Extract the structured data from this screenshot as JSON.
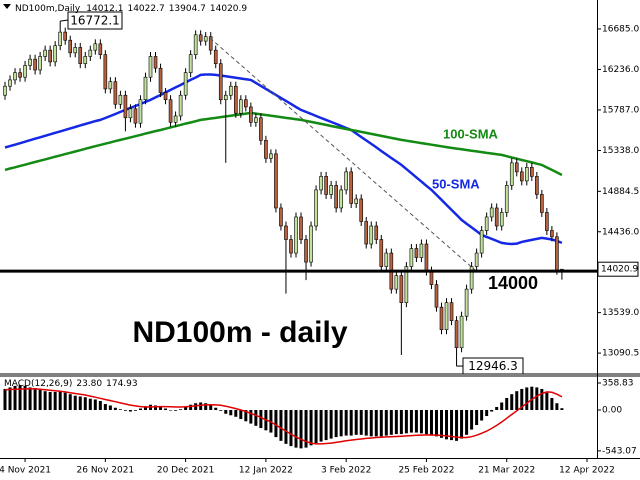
{
  "chart_data": [
    {
      "type": "candlestick",
      "title": "ND100m - daily",
      "symbol": "ND100m,Daily",
      "ylim": [
        12881,
        17006
      ],
      "yticks": [
        {
          "value": 16685,
          "label": "16685.0"
        },
        {
          "value": 16236,
          "label": "16236.0"
        },
        {
          "value": 15787,
          "label": "15787.0"
        },
        {
          "value": 15338,
          "label": "15338.0"
        },
        14884.5,
        {
          "value": 14436,
          "label": "14436.0"
        },
        {
          "value": 13539,
          "label": "13539.0"
        },
        13090.5
      ],
      "open": [
        15950,
        16050,
        16120,
        16200,
        16150,
        16280,
        16350,
        16230,
        16380,
        16450,
        16320,
        16500,
        16650,
        16560,
        16420,
        16480,
        16300,
        16380,
        16450,
        16520,
        16400,
        16020,
        16100,
        15850,
        15950,
        15700,
        15800,
        15640,
        15900,
        16150,
        16380,
        16250,
        15980,
        15900,
        15650,
        15720,
        15950,
        16200,
        16400,
        16620,
        16550,
        16600,
        16450,
        16300,
        15900,
        15950,
        16050,
        15750,
        15900,
        15820,
        15650,
        15700,
        15450,
        15250,
        15300,
        14700,
        14500,
        14350,
        14200,
        14600,
        14350,
        14100,
        14500,
        14900,
        15050,
        14850,
        14950,
        14700,
        14900,
        15100,
        14750,
        14800,
        14550,
        14300,
        14500,
        14350,
        14050,
        14200,
        13800,
        13950,
        13650,
        14050,
        14250,
        14150,
        14300,
        14000,
        13850,
        13600,
        13350,
        13650,
        13450,
        13150,
        13500,
        13800,
        14050,
        14200,
        14450,
        14600,
        14700,
        14500,
        14650,
        14950,
        15200,
        15100,
        15000,
        15150,
        15050,
        14850,
        14650,
        14450,
        14380,
        14012.1
      ],
      "high": [
        16100,
        16170,
        16250,
        16250,
        16330,
        16400,
        16400,
        16430,
        16500,
        16500,
        16550,
        16772.1,
        16700,
        16610,
        16530,
        16530,
        16430,
        16500,
        16570,
        16570,
        16450,
        16150,
        16150,
        16000,
        16000,
        15850,
        15850,
        15950,
        16200,
        16430,
        16430,
        16300,
        16030,
        15950,
        15770,
        16000,
        16250,
        16450,
        16670,
        16670,
        16650,
        16650,
        16500,
        16350,
        16000,
        16100,
        16100,
        15950,
        15950,
        15870,
        15750,
        15750,
        15500,
        15350,
        15350,
        14750,
        14550,
        14400,
        14650,
        14650,
        14400,
        14550,
        14950,
        15100,
        15100,
        15000,
        15000,
        14950,
        15150,
        15150,
        14850,
        14850,
        14600,
        14550,
        14550,
        14400,
        14250,
        14250,
        14000,
        14000,
        14100,
        14300,
        14300,
        14350,
        14350,
        14050,
        13900,
        13650,
        13700,
        13700,
        13500,
        13550,
        13850,
        14100,
        14250,
        14500,
        14650,
        14750,
        14750,
        14700,
        15000,
        15250,
        15250,
        15150,
        15200,
        15200,
        15100,
        14900,
        14700,
        14500,
        14430,
        14022.7
      ],
      "low": [
        15900,
        16000,
        16070,
        16100,
        16100,
        16230,
        16180,
        16180,
        16330,
        16270,
        16270,
        16450,
        16510,
        16370,
        16370,
        16250,
        16250,
        16330,
        16400,
        16350,
        15970,
        15970,
        15800,
        15800,
        15550,
        15650,
        15590,
        15590,
        15850,
        16100,
        16200,
        15930,
        15850,
        15600,
        15600,
        15670,
        15900,
        16150,
        16350,
        16500,
        16500,
        16400,
        16250,
        15850,
        15200,
        15900,
        15700,
        15700,
        15770,
        15600,
        15600,
        15400,
        15200,
        15200,
        14650,
        14450,
        13750,
        14150,
        14150,
        14300,
        13900,
        14050,
        14450,
        14850,
        14800,
        14800,
        14650,
        14650,
        14850,
        14700,
        14700,
        14500,
        14250,
        14250,
        14300,
        14000,
        14000,
        13750,
        13750,
        13070,
        13600,
        14000,
        14100,
        14100,
        13950,
        13800,
        13550,
        13300,
        13300,
        13400,
        12946.3,
        13100,
        13450,
        13750,
        14000,
        14150,
        14400,
        14550,
        14450,
        14450,
        14600,
        14900,
        15050,
        14950,
        14950,
        15000,
        14800,
        14600,
        14400,
        14330,
        13960,
        13904.7
      ],
      "close": [
        16050,
        16120,
        16200,
        16150,
        16280,
        16350,
        16230,
        16380,
        16450,
        16320,
        16500,
        16650,
        16560,
        16420,
        16480,
        16300,
        16380,
        16450,
        16520,
        16400,
        16020,
        16100,
        15850,
        15950,
        15700,
        15800,
        15640,
        15900,
        16150,
        16380,
        16250,
        15980,
        15900,
        15650,
        15720,
        15950,
        16200,
        16400,
        16620,
        16550,
        16600,
        16450,
        16300,
        15900,
        15950,
        16050,
        15750,
        15900,
        15820,
        15650,
        15700,
        15450,
        15250,
        15300,
        14700,
        14500,
        14350,
        14200,
        14600,
        14350,
        14100,
        14500,
        14900,
        15050,
        14850,
        14950,
        14700,
        14900,
        15100,
        14750,
        14800,
        14550,
        14300,
        14500,
        14350,
        14050,
        14200,
        13800,
        13950,
        13650,
        14050,
        14250,
        14150,
        14300,
        14000,
        13850,
        13600,
        13350,
        13650,
        13450,
        13150,
        13500,
        13800,
        14050,
        14200,
        14450,
        14600,
        14700,
        14500,
        14650,
        14950,
        15200,
        15100,
        15000,
        15150,
        15050,
        14850,
        14650,
        14450,
        14380,
        14012.1,
        14020.9
      ],
      "color_up": "#c2e29e",
      "color_down": "#b8613f",
      "lines": [
        {
          "name": "50-SMA",
          "color": "#1428e6",
          "values": [
            15370,
            15386,
            15402,
            15418,
            15435,
            15451,
            15468,
            15484,
            15500,
            15517,
            15533,
            15549,
            15566,
            15582,
            15598,
            15615,
            15631,
            15647,
            15663,
            15676,
            15698,
            15720,
            15742,
            15765,
            15787,
            15809,
            15831,
            15853,
            15876,
            15898,
            15926,
            15953,
            15981,
            16009,
            16037,
            16064,
            16092,
            16120,
            16147,
            16175,
            16180,
            16180,
            16175,
            16168,
            16160,
            16152,
            16144,
            16136,
            16128,
            16120,
            16087,
            16053,
            16020,
            15987,
            15954,
            15920,
            15887,
            15854,
            15820,
            15787,
            15765,
            15743,
            15720,
            15698,
            15676,
            15654,
            15632,
            15610,
            15587,
            15565,
            15526,
            15487,
            15449,
            15410,
            15371,
            15332,
            15293,
            15254,
            15216,
            15177,
            15131,
            15085,
            15039,
            14992,
            14946,
            14900,
            14845,
            14790,
            14734,
            14679,
            14623,
            14568,
            14526,
            14484,
            14443,
            14401,
            14379,
            14357,
            14335,
            14313,
            14305,
            14300,
            14305,
            14324,
            14335,
            14346,
            14357,
            14368,
            14360,
            14350,
            14335,
            14313
          ]
        },
        {
          "name": "100-SMA",
          "color": "#138a13",
          "values": [
            15122,
            15137,
            15151,
            15166,
            15180,
            15195,
            15210,
            15224,
            15239,
            15253,
            15268,
            15283,
            15297,
            15312,
            15326,
            15341,
            15356,
            15370,
            15385,
            15399,
            15413,
            15427,
            15441,
            15455,
            15468,
            15482,
            15496,
            15510,
            15524,
            15538,
            15552,
            15565,
            15579,
            15593,
            15607,
            15621,
            15635,
            15648,
            15662,
            15676,
            15684,
            15692,
            15699,
            15707,
            15715,
            15723,
            15731,
            15738,
            15746,
            15754,
            15746,
            15738,
            15731,
            15723,
            15715,
            15707,
            15699,
            15692,
            15684,
            15676,
            15665,
            15654,
            15643,
            15632,
            15621,
            15609,
            15598,
            15587,
            15576,
            15565,
            15554,
            15543,
            15532,
            15521,
            15510,
            15499,
            15488,
            15477,
            15466,
            15455,
            15446,
            15437,
            15428,
            15419,
            15410,
            15402,
            15393,
            15384,
            15375,
            15366,
            15358,
            15350,
            15343,
            15335,
            15327,
            15319,
            15311,
            15304,
            15296,
            15288,
            15274,
            15260,
            15246,
            15232,
            15219,
            15205,
            15191,
            15177,
            15149,
            15122,
            15094,
            15066
          ]
        }
      ],
      "level": 14000
    },
    {
      "type": "macd",
      "title": "MACD(12,26,9)",
      "readout_labels": [
        "23.80",
        "174.93"
      ],
      "categories": [
        null,
        null,
        null,
        null,
        "4 Nov 2021",
        null,
        null,
        null,
        null,
        null,
        null,
        null,
        null,
        null,
        null,
        null,
        null,
        null,
        null,
        null,
        "26 Nov 2021",
        null,
        null,
        null,
        null,
        null,
        null,
        null,
        null,
        null,
        null,
        null,
        null,
        null,
        null,
        null,
        "20 Dec 2021",
        null,
        null,
        null,
        null,
        null,
        null,
        null,
        null,
        null,
        null,
        null,
        null,
        null,
        null,
        null,
        "12 Jan 2022",
        null,
        null,
        null,
        null,
        null,
        null,
        null,
        null,
        null,
        null,
        null,
        null,
        null,
        null,
        null,
        "3 Feb 2022",
        null,
        null,
        null,
        null,
        null,
        null,
        null,
        null,
        null,
        null,
        null,
        null,
        null,
        null,
        null,
        "25 Feb 2022",
        null,
        null,
        null,
        null,
        null,
        null,
        null,
        null,
        null,
        null,
        null,
        null,
        null,
        null,
        null,
        "21 Mar 2022",
        null,
        null,
        null,
        null,
        null,
        null,
        null,
        null,
        null,
        null,
        null,
        null,
        null,
        null,
        null,
        "12 Apr 2022"
      ],
      "ylim": [
        -638,
        452
      ],
      "yticks": [
        358.83,
        {
          "value": 0,
          "label": "0.00"
        },
        -543.07
      ],
      "series": [
        {
          "color": "#000000",
          "values": [
            280,
            300,
            320,
            330,
            320,
            300,
            290,
            270,
            250,
            240,
            240,
            250,
            230,
            210,
            190,
            180,
            170,
            150,
            140,
            120,
            80,
            60,
            30,
            10,
            -10,
            -20,
            -10,
            20,
            50,
            70,
            60,
            40,
            20,
            0,
            -10,
            10,
            40,
            70,
            90,
            100,
            90,
            60,
            30,
            -10,
            -50,
            -70,
            -90,
            -120,
            -150,
            -180,
            -210,
            -240,
            -270,
            -300,
            -360,
            -410,
            -450,
            -480,
            -500,
            -510,
            -500,
            -470,
            -440,
            -420,
            -400,
            -380,
            -360,
            -350,
            -340,
            -340,
            -330,
            -330,
            -340,
            -350,
            -350,
            -350,
            -340,
            -330,
            -320,
            -320,
            -310,
            -300,
            -300,
            -310,
            -320,
            -340,
            -350,
            -370,
            -390,
            -400,
            -410,
            -380,
            -330,
            -260,
            -200,
            -140,
            -80,
            -20,
            40,
            100,
            160,
            210,
            250,
            280,
            300,
            310,
            300,
            280,
            230,
            160,
            90,
            23.8,
            null,
            null,
            null,
            null,
            null
          ]
        },
        {
          "color": "#e00000",
          "values": [
            270,
            272,
            275,
            278,
            280,
            282,
            280,
            275,
            270,
            262,
            255,
            248,
            240,
            230,
            220,
            210,
            200,
            185,
            170,
            155,
            140,
            125,
            110,
            95,
            80,
            65,
            55,
            45,
            40,
            40,
            42,
            45,
            45,
            42,
            40,
            40,
            42,
            48,
            55,
            62,
            68,
            70,
            68,
            62,
            50,
            35,
            18,
            0,
            -20,
            -45,
            -70,
            -100,
            -130,
            -160,
            -200,
            -240,
            -280,
            -320,
            -360,
            -390,
            -420,
            -440,
            -450,
            -450,
            -445,
            -440,
            -430,
            -420,
            -410,
            -400,
            -392,
            -385,
            -378,
            -372,
            -366,
            -362,
            -358,
            -355,
            -352,
            -348,
            -344,
            -340,
            -336,
            -333,
            -331,
            -332,
            -334,
            -338,
            -344,
            -352,
            -360,
            -365,
            -365,
            -355,
            -335,
            -310,
            -280,
            -245,
            -205,
            -160,
            -110,
            -60,
            -10,
            40,
            90,
            140,
            185,
            220,
            240,
            235,
            210,
            174.93,
            null,
            null,
            null,
            null,
            null
          ]
        }
      ]
    }
  ]
}
